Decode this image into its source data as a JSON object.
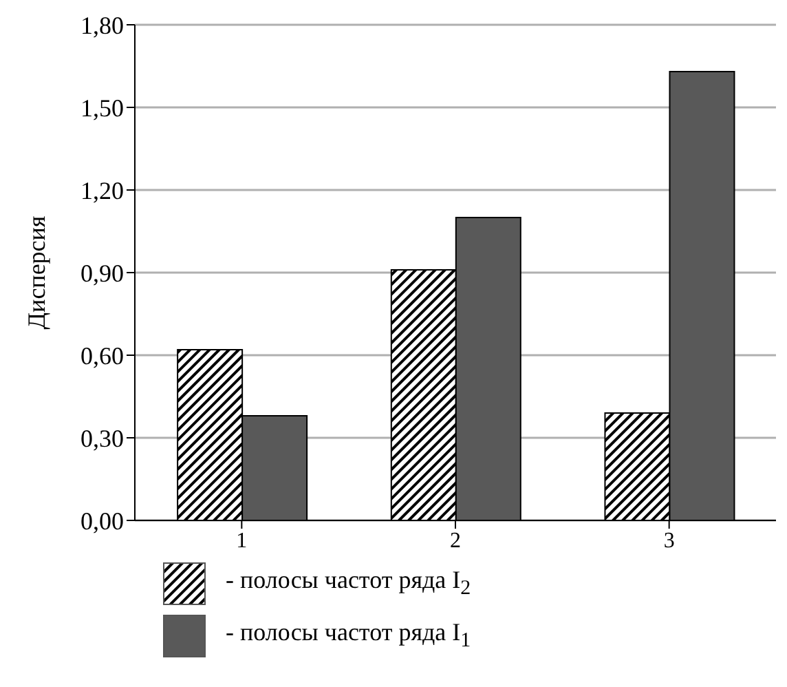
{
  "chart_data": {
    "type": "bar",
    "ylabel": "Дисперсия",
    "categories": [
      "1",
      "2",
      "3"
    ],
    "series": [
      {
        "name": "- полосы частот ряда I$_{2}$",
        "color": "#000000",
        "values": [
          0.62,
          0.91,
          0.39
        ]
      },
      {
        "name": "- полосы частот ряда I$_{1}$",
        "color": "#595959",
        "values": [
          0.38,
          1.1,
          1.63
        ]
      }
    ],
    "ylim": [
      0,
      1.8
    ],
    "yticks": [
      {
        "value": 0,
        "label": "0,00"
      },
      {
        "value": 0.3,
        "label": "0,30"
      },
      {
        "value": 0.6,
        "label": "0,60"
      },
      {
        "value": 0.9,
        "label": "0,90"
      },
      {
        "value": 1.2,
        "label": "1,20"
      },
      {
        "value": 1.5,
        "label": "1,50"
      },
      {
        "value": 1.8,
        "label": "1,80"
      }
    ],
    "grid": "y",
    "legend": "bottom"
  }
}
